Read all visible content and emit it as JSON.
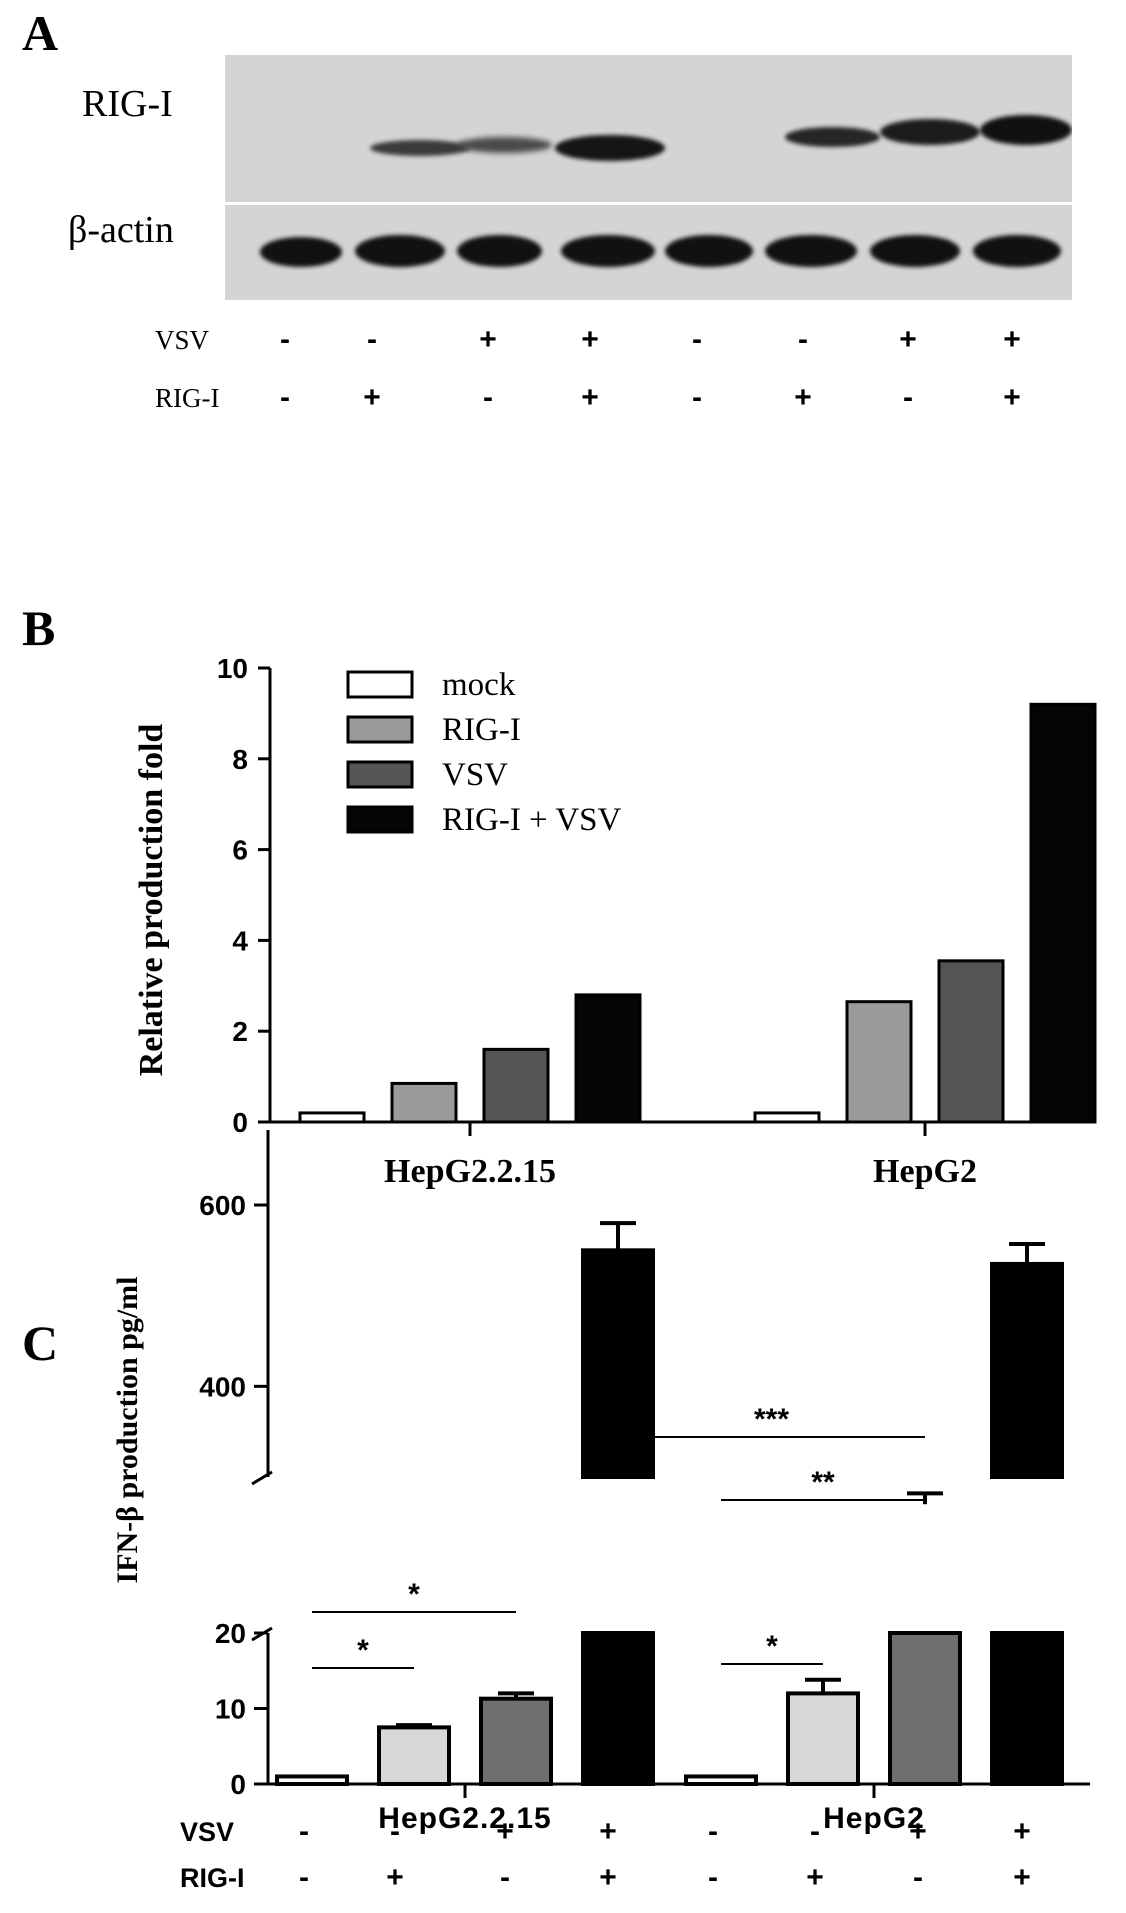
{
  "panels": {
    "a": {
      "letter": "A",
      "rows": [
        "RIG-I",
        "β-actin"
      ],
      "treatments": [
        {
          "name": "VSV",
          "signs": [
            "-",
            "-",
            "+",
            "+",
            "-",
            "-",
            "+",
            "+"
          ]
        },
        {
          "name": "RIG-I",
          "signs": [
            "-",
            "+",
            "-",
            "+",
            "-",
            "+",
            "-",
            "+"
          ]
        }
      ]
    },
    "b": {
      "letter": "B"
    },
    "c": {
      "letter": "C",
      "treatments": [
        {
          "name": "VSV",
          "signs": [
            "-",
            "-",
            "+",
            "+",
            "-",
            "-",
            "+",
            "+"
          ]
        },
        {
          "name": "RIG-I",
          "signs": [
            "-",
            "+",
            "-",
            "+",
            "-",
            "+",
            "-",
            "+"
          ]
        }
      ]
    }
  },
  "chart_data": [
    {
      "panel": "B",
      "type": "bar",
      "categories": [
        "HepG2.2.15",
        "HepG2"
      ],
      "ylabel": "Relative production fold",
      "ylim": [
        0,
        10
      ],
      "yticks": [
        0,
        2,
        4,
        6,
        8,
        10
      ],
      "legend_position": "top-left",
      "series": [
        {
          "name": "mock",
          "color": "#ffffff",
          "values": [
            0.2,
            0.2
          ]
        },
        {
          "name": "RIG-I",
          "color": "#9a9a9a",
          "values": [
            0.85,
            2.65
          ]
        },
        {
          "name": "VSV",
          "color": "#555555",
          "values": [
            1.6,
            3.55
          ]
        },
        {
          "name": "RIG-I + VSV",
          "color": "#050505",
          "values": [
            2.8,
            9.2
          ]
        }
      ]
    },
    {
      "panel": "C",
      "type": "bar",
      "categories": [
        "HepG2.2.15",
        "HepG2"
      ],
      "ylabel": "IFN-β production pg/ml",
      "axis_break": true,
      "ylim_lower": [
        0,
        20
      ],
      "ylim_upper": [
        300,
        700
      ],
      "yticks": [
        0,
        10,
        20,
        400,
        600
      ],
      "series": [
        {
          "treatment": "mock",
          "color": "#ffffff",
          "values": [
            1,
            1
          ],
          "errors": [
            0,
            0
          ]
        },
        {
          "treatment": "RIG-I",
          "color": "#d8d8d8",
          "values": [
            7.5,
            12
          ],
          "errors": [
            0.3,
            1.8
          ]
        },
        {
          "treatment": "VSV",
          "color": "#6f6f6f",
          "values": [
            11.3,
            270
          ],
          "errors": [
            0.7,
            12
          ]
        },
        {
          "treatment": "RIG-I + VSV",
          "color": "#000000",
          "values": [
            550,
            535
          ],
          "errors": [
            30,
            22
          ]
        }
      ],
      "significance": [
        {
          "label": "*",
          "from": "HepG2.2.15 mock",
          "to": "HepG2.2.15 RIG-I"
        },
        {
          "label": "*",
          "from": "HepG2.2.15 mock",
          "to": "HepG2.2.15 VSV"
        },
        {
          "label": "***",
          "from": "HepG2.2.15 RIG-I + VSV",
          "to": "HepG2 VSV"
        },
        {
          "label": "**",
          "from": "HepG2 mock",
          "to": "HepG2 VSV"
        },
        {
          "label": "*",
          "from": "HepG2 mock",
          "to": "HepG2 RIG-I"
        }
      ]
    }
  ]
}
